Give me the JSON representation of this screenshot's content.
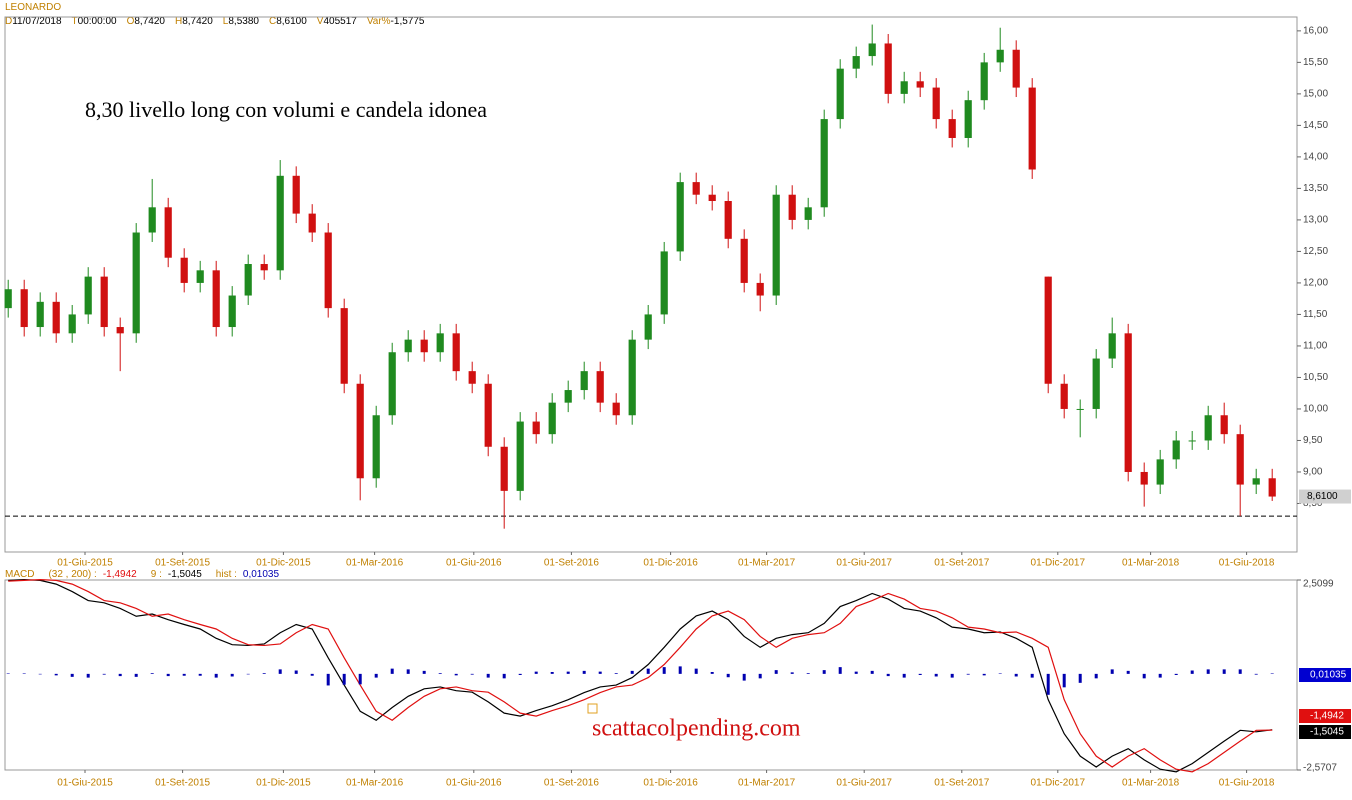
{
  "header": {
    "symbol": "LEONARDO",
    "fields": [
      {
        "key": "D",
        "value": "11/07/2018"
      },
      {
        "key": "T",
        "value": "00:00:00"
      },
      {
        "key": "O",
        "value": "8,7420"
      },
      {
        "key": "H",
        "value": "8,7420"
      },
      {
        "key": "L",
        "value": "8,5380"
      },
      {
        "key": "C",
        "value": "8,6100"
      },
      {
        "key": "V",
        "value": "405517"
      },
      {
        "key": "Var%",
        "value": "-1,5775"
      }
    ]
  },
  "chart_data": [
    {
      "type": "candlestick",
      "annotation": "8,30 livello long con volumi e candela idonea",
      "level": 8.3,
      "up_color": "#1f8a1f",
      "down_color": "#d01010",
      "xlim": [
        -0.2,
        80.55
      ],
      "xticks": [
        {
          "value": 4.8,
          "label": "01-Giu-2015"
        },
        {
          "value": 10.9,
          "label": "01-Set-2015"
        },
        {
          "value": 17.2,
          "label": "01-Dic-2015"
        },
        {
          "value": 22.9,
          "label": "01-Mar-2016"
        },
        {
          "value": 29.1,
          "label": "01-Giu-2016"
        },
        {
          "value": 35.2,
          "label": "01-Set-2016"
        },
        {
          "value": 41.4,
          "label": "01-Dic-2016"
        },
        {
          "value": 47.4,
          "label": "01-Mar-2017"
        },
        {
          "value": 53.5,
          "label": "01-Giu-2017"
        },
        {
          "value": 59.6,
          "label": "01-Set-2017"
        },
        {
          "value": 65.6,
          "label": "01-Dic-2017"
        },
        {
          "value": 71.4,
          "label": "01-Mar-2018"
        },
        {
          "value": 77.4,
          "label": "01-Giu-2018"
        }
      ],
      "ylim": [
        7.73,
        16.22
      ],
      "yticks": [
        {
          "value": 8.5,
          "label": "8,50"
        },
        {
          "value": 9,
          "label": "9,00"
        },
        {
          "value": 9.5,
          "label": "9,50"
        },
        {
          "value": 10,
          "label": "10,00"
        },
        {
          "value": 10.5,
          "label": "10,50"
        },
        {
          "value": 11,
          "label": "11,00"
        },
        {
          "value": 11.5,
          "label": "11,50"
        },
        {
          "value": 12,
          "label": "12,00"
        },
        {
          "value": 12.5,
          "label": "12,50"
        },
        {
          "value": 13,
          "label": "13,00"
        },
        {
          "value": 13.5,
          "label": "13,50"
        },
        {
          "value": 14,
          "label": "14,00"
        },
        {
          "value": 14.5,
          "label": "14,50"
        },
        {
          "value": 15,
          "label": "15,00"
        },
        {
          "value": 15.5,
          "label": "15,50"
        },
        {
          "value": 16,
          "label": "16,00"
        }
      ],
      "open": [
        11.6,
        11.9,
        11.3,
        11.7,
        11.2,
        11.5,
        12.1,
        11.3,
        11.2,
        12.8,
        13.2,
        12.4,
        12.0,
        12.2,
        11.3,
        11.8,
        12.3,
        12.2,
        13.7,
        13.1,
        12.8,
        11.6,
        10.4,
        8.9,
        9.9,
        10.9,
        11.1,
        10.9,
        11.2,
        10.6,
        10.4,
        9.4,
        8.7,
        9.8,
        9.6,
        10.1,
        10.3,
        10.6,
        10.1,
        9.9,
        11.1,
        11.5,
        12.5,
        13.6,
        13.4,
        13.3,
        12.7,
        12.0,
        11.8,
        13.4,
        13.0,
        13.2,
        14.6,
        15.4,
        15.6,
        15.8,
        15.0,
        15.2,
        15.1,
        14.6,
        14.3,
        14.9,
        15.5,
        15.7,
        15.1,
        12.1,
        10.4,
        10.0,
        10.0,
        10.8,
        11.2,
        9.0,
        8.8,
        9.2,
        9.5,
        9.5,
        9.9,
        9.6,
        8.8,
        8.9
      ],
      "high": [
        12.05,
        12.05,
        11.85,
        11.85,
        11.65,
        12.25,
        12.25,
        11.45,
        12.95,
        13.65,
        13.35,
        12.55,
        12.35,
        12.35,
        11.95,
        12.45,
        12.45,
        13.95,
        13.85,
        13.25,
        12.95,
        11.75,
        10.55,
        10.05,
        11.05,
        11.25,
        11.25,
        11.35,
        11.35,
        10.75,
        10.55,
        9.55,
        9.95,
        9.95,
        10.25,
        10.45,
        10.75,
        10.75,
        10.25,
        11.25,
        11.65,
        12.65,
        13.75,
        13.75,
        13.55,
        13.45,
        12.85,
        12.15,
        13.55,
        13.55,
        13.35,
        14.75,
        15.55,
        15.75,
        16.1,
        15.95,
        15.35,
        15.35,
        15.25,
        14.75,
        15.05,
        15.65,
        16.05,
        15.85,
        15.25,
        12.1,
        10.55,
        10.15,
        10.95,
        11.45,
        11.35,
        9.15,
        9.35,
        9.65,
        9.65,
        10.05,
        10.1,
        9.75,
        9.05,
        9.05
      ],
      "low": [
        11.45,
        11.15,
        11.15,
        11.05,
        11.05,
        11.35,
        11.15,
        10.6,
        11.05,
        12.65,
        12.25,
        11.85,
        11.85,
        11.15,
        11.15,
        11.65,
        12.05,
        12.05,
        12.95,
        12.65,
        11.45,
        10.25,
        8.55,
        8.75,
        9.75,
        10.75,
        10.75,
        10.75,
        10.45,
        10.25,
        9.25,
        8.1,
        8.55,
        9.45,
        9.45,
        9.95,
        10.15,
        9.95,
        9.75,
        9.75,
        10.95,
        11.35,
        12.35,
        13.25,
        13.15,
        12.55,
        11.85,
        11.55,
        11.65,
        12.85,
        12.85,
        13.05,
        14.45,
        15.25,
        15.45,
        14.85,
        14.85,
        14.95,
        14.45,
        14.15,
        14.15,
        14.75,
        15.35,
        14.95,
        13.65,
        10.25,
        9.85,
        9.55,
        9.85,
        10.65,
        8.85,
        8.45,
        8.65,
        9.05,
        9.35,
        9.35,
        9.45,
        8.3,
        8.65,
        8.54
      ],
      "close": [
        11.9,
        11.3,
        11.7,
        11.2,
        11.5,
        12.1,
        11.3,
        11.2,
        12.8,
        13.2,
        12.4,
        12.0,
        12.2,
        11.3,
        11.8,
        12.3,
        12.2,
        13.7,
        13.1,
        12.8,
        11.6,
        10.4,
        8.9,
        9.9,
        10.9,
        11.1,
        10.9,
        11.2,
        10.6,
        10.4,
        9.4,
        8.7,
        9.8,
        9.6,
        10.1,
        10.3,
        10.6,
        10.1,
        9.9,
        11.1,
        11.5,
        12.5,
        13.6,
        13.4,
        13.3,
        12.7,
        12.0,
        11.8,
        13.4,
        13.0,
        13.2,
        14.6,
        15.4,
        15.6,
        15.8,
        15.0,
        15.2,
        15.1,
        14.6,
        14.3,
        14.9,
        15.5,
        15.7,
        15.1,
        13.8,
        10.4,
        10.0,
        10.0,
        10.8,
        11.2,
        9.0,
        8.8,
        9.2,
        9.5,
        9.5,
        9.9,
        9.6,
        8.8,
        8.9,
        8.61
      ],
      "last_label": "8,6100"
    },
    {
      "type": "macd",
      "title": "MACD",
      "watermark": "scattacolpending.com",
      "xlim": [
        -0.2,
        80.55
      ],
      "xticks": [
        {
          "value": 4.8,
          "label": "01-Giu-2015"
        },
        {
          "value": 10.9,
          "label": "01-Set-2015"
        },
        {
          "value": 17.2,
          "label": "01-Dic-2015"
        },
        {
          "value": 22.9,
          "label": "01-Mar-2016"
        },
        {
          "value": 29.1,
          "label": "01-Giu-2016"
        },
        {
          "value": 35.2,
          "label": "01-Set-2016"
        },
        {
          "value": 41.4,
          "label": "01-Dic-2016"
        },
        {
          "value": 47.4,
          "label": "01-Mar-2017"
        },
        {
          "value": 53.5,
          "label": "01-Giu-2017"
        },
        {
          "value": 59.6,
          "label": "01-Set-2017"
        },
        {
          "value": 65.6,
          "label": "01-Dic-2017"
        },
        {
          "value": 71.4,
          "label": "01-Mar-2018"
        },
        {
          "value": 77.4,
          "label": "01-Giu-2018"
        }
      ],
      "ylim": [
        -2.5707,
        2.5099
      ],
      "yticks": [
        {
          "value": 2.5099,
          "label": "2,5099"
        },
        {
          "value": -2.5707,
          "label": "-2,5707"
        }
      ],
      "series": [
        {
          "params": "(32 , 200) :",
          "type": "line",
          "color": "#000000",
          "value_label": "-1,4942",
          "values": [
            2.5,
            2.52,
            2.5,
            2.4,
            2.2,
            1.96,
            1.9,
            1.75,
            1.54,
            1.6,
            1.45,
            1.32,
            1.2,
            0.95,
            0.78,
            0.76,
            0.8,
            1.1,
            1.32,
            1.2,
            0.43,
            -0.3,
            -1.0,
            -1.24,
            -0.9,
            -0.6,
            -0.4,
            -0.35,
            -0.45,
            -0.49,
            -0.75,
            -1.05,
            -1.13,
            -0.98,
            -0.85,
            -0.69,
            -0.5,
            -0.35,
            -0.3,
            -0.1,
            0.25,
            0.71,
            1.2,
            1.55,
            1.68,
            1.45,
            1.0,
            0.71,
            0.95,
            1.05,
            1.1,
            1.35,
            1.8,
            1.96,
            2.15,
            2.0,
            1.75,
            1.68,
            1.5,
            1.25,
            1.2,
            1.1,
            1.12,
            0.95,
            0.71,
            -0.69,
            -1.6,
            -2.2,
            -2.49,
            -2.2,
            -2.0,
            -2.3,
            -2.55,
            -2.62,
            -2.4,
            -2.1,
            -1.8,
            -1.51,
            -1.55,
            -1.4942
          ]
        },
        {
          "params": "9 :",
          "type": "line",
          "color": "#e01010",
          "value_label": "-1,5045",
          "values": [
            2.48,
            2.5,
            2.52,
            2.5,
            2.4,
            2.2,
            1.96,
            1.9,
            1.75,
            1.54,
            1.6,
            1.45,
            1.32,
            1.2,
            0.95,
            0.78,
            0.76,
            0.8,
            1.1,
            1.32,
            1.2,
            0.43,
            -0.3,
            -1.0,
            -1.24,
            -0.9,
            -0.6,
            -0.4,
            -0.35,
            -0.45,
            -0.49,
            -0.75,
            -1.05,
            -1.13,
            -0.98,
            -0.85,
            -0.69,
            -0.5,
            -0.35,
            -0.3,
            -0.1,
            0.25,
            0.71,
            1.2,
            1.55,
            1.68,
            1.45,
            1.0,
            0.71,
            0.95,
            1.05,
            1.1,
            1.35,
            1.8,
            1.96,
            2.15,
            2.0,
            1.75,
            1.68,
            1.5,
            1.25,
            1.2,
            1.1,
            1.12,
            0.95,
            0.71,
            -0.69,
            -1.6,
            -2.2,
            -2.49,
            -2.2,
            -2.0,
            -2.3,
            -2.55,
            -2.62,
            -2.4,
            -2.1,
            -1.8,
            -1.51,
            -1.5045
          ]
        },
        {
          "params": "hist :",
          "type": "bar",
          "color": "#0000b0",
          "value_label": "0,01035",
          "values": [
            0.01,
            0.01,
            -0.01,
            -0.04,
            -0.08,
            -0.1,
            -0.02,
            -0.06,
            -0.08,
            0.02,
            -0.06,
            -0.05,
            -0.05,
            -0.1,
            -0.07,
            -0.01,
            0.02,
            0.12,
            0.09,
            -0.05,
            -0.31,
            -0.29,
            -0.28,
            -0.1,
            0.14,
            0.12,
            0.08,
            0.02,
            -0.04,
            -0.02,
            -0.1,
            -0.12,
            -0.03,
            0.06,
            0.05,
            0.06,
            0.08,
            0.06,
            0.02,
            0.08,
            0.14,
            0.18,
            0.2,
            0.14,
            0.05,
            -0.09,
            -0.18,
            -0.12,
            0.1,
            0.04,
            0.02,
            0.1,
            0.18,
            0.06,
            0.08,
            -0.06,
            -0.1,
            -0.03,
            -0.07,
            -0.1,
            -0.02,
            -0.04,
            0.01,
            -0.07,
            -0.1,
            -0.56,
            -0.36,
            -0.24,
            -0.12,
            0.12,
            0.08,
            -0.12,
            -0.1,
            -0.03,
            0.09,
            0.12,
            0.12,
            0.12,
            -0.02,
            0.01035
          ]
        }
      ]
    }
  ]
}
